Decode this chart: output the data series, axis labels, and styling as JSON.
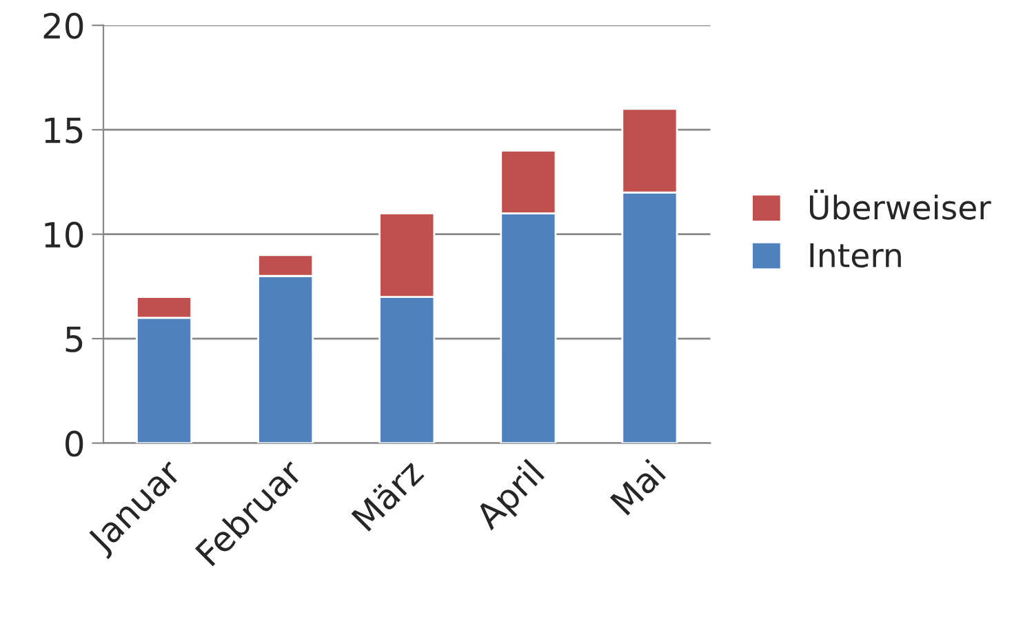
{
  "chart_data": {
    "type": "bar",
    "stacked": true,
    "categories": [
      "Januar",
      "Februar",
      "März",
      "April",
      "Mai"
    ],
    "series": [
      {
        "name": "Intern",
        "color": "#4f81bd",
        "values": [
          6,
          8,
          7,
          11,
          12
        ]
      },
      {
        "name": "Überweiser",
        "color": "#c0504d",
        "values": [
          1,
          1,
          4,
          3,
          4
        ]
      }
    ],
    "ylim": [
      0,
      20
    ],
    "yticks": [
      0,
      5,
      10,
      15,
      20
    ],
    "grid": "y",
    "legend": "right"
  }
}
